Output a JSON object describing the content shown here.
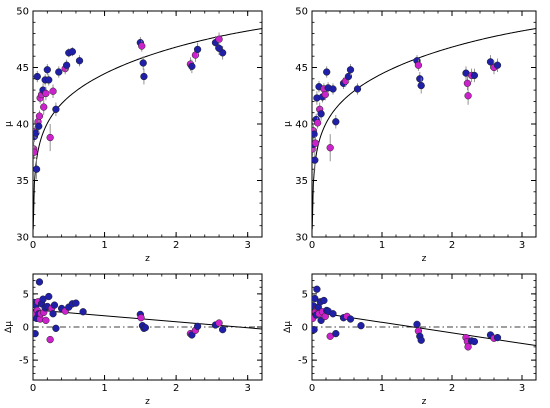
{
  "chart_data": [
    {
      "id": "top-left",
      "type": "scatter",
      "xlabel": "z",
      "ylabel": "μ",
      "xlim": [
        0,
        3.2
      ],
      "ylim": [
        30,
        50
      ],
      "xticks": [
        0,
        1,
        2,
        3
      ],
      "yticks": [
        30,
        35,
        40,
        45,
        50
      ],
      "xtick_labels": [
        "0",
        "1",
        "2",
        "3"
      ],
      "ytick_labels": [
        "30",
        "35",
        "40",
        "45",
        "50"
      ],
      "reference_line": "curve",
      "colors": {
        "blue": "#1f1fa8",
        "magenta": "#cc22cc",
        "line": "#000000",
        "errorbar": "#888888"
      },
      "points": [
        {
          "x": 0.01,
          "y": 37.8,
          "e": 0.6,
          "c": "magenta"
        },
        {
          "x": 0.015,
          "y": 37.5,
          "e": 0.6,
          "c": "magenta"
        },
        {
          "x": 0.02,
          "y": 38.9,
          "e": 0.5,
          "c": "blue"
        },
        {
          "x": 0.025,
          "y": 39.3,
          "e": 0.5,
          "c": "magenta"
        },
        {
          "x": 0.04,
          "y": 39.2,
          "e": 0.5,
          "c": "blue"
        },
        {
          "x": 0.05,
          "y": 36.0,
          "e": 0.9,
          "c": "blue"
        },
        {
          "x": 0.06,
          "y": 44.2,
          "e": 0.5,
          "c": "blue"
        },
        {
          "x": 0.07,
          "y": 40.2,
          "e": 0.6,
          "c": "magenta"
        },
        {
          "x": 0.08,
          "y": 39.8,
          "e": 0.6,
          "c": "blue"
        },
        {
          "x": 0.09,
          "y": 40.7,
          "e": 0.5,
          "c": "magenta"
        },
        {
          "x": 0.1,
          "y": 42.3,
          "e": 0.5,
          "c": "magenta"
        },
        {
          "x": 0.12,
          "y": 42.6,
          "e": 0.5,
          "c": "magenta"
        },
        {
          "x": 0.14,
          "y": 43.0,
          "e": 0.6,
          "c": "blue"
        },
        {
          "x": 0.15,
          "y": 41.5,
          "e": 0.7,
          "c": "magenta"
        },
        {
          "x": 0.17,
          "y": 43.9,
          "e": 0.5,
          "c": "blue"
        },
        {
          "x": 0.18,
          "y": 42.7,
          "e": 0.6,
          "c": "magenta"
        },
        {
          "x": 0.2,
          "y": 44.8,
          "e": 0.5,
          "c": "blue"
        },
        {
          "x": 0.22,
          "y": 43.9,
          "e": 0.5,
          "c": "blue"
        },
        {
          "x": 0.24,
          "y": 38.8,
          "e": 1.2,
          "c": "magenta"
        },
        {
          "x": 0.28,
          "y": 42.9,
          "e": 0.6,
          "c": "magenta"
        },
        {
          "x": 0.32,
          "y": 41.3,
          "e": 0.6,
          "c": "blue"
        },
        {
          "x": 0.36,
          "y": 44.6,
          "e": 0.5,
          "c": "blue"
        },
        {
          "x": 0.45,
          "y": 44.9,
          "e": 0.5,
          "c": "magenta"
        },
        {
          "x": 0.47,
          "y": 45.2,
          "e": 0.5,
          "c": "blue"
        },
        {
          "x": 0.5,
          "y": 46.3,
          "e": 0.4,
          "c": "blue"
        },
        {
          "x": 0.55,
          "y": 46.4,
          "e": 0.4,
          "c": "blue"
        },
        {
          "x": 0.65,
          "y": 45.6,
          "e": 0.5,
          "c": "blue"
        },
        {
          "x": 1.5,
          "y": 47.2,
          "e": 0.5,
          "c": "blue"
        },
        {
          "x": 1.52,
          "y": 46.9,
          "e": 0.5,
          "c": "magenta"
        },
        {
          "x": 1.54,
          "y": 45.4,
          "e": 0.6,
          "c": "blue"
        },
        {
          "x": 1.55,
          "y": 44.2,
          "e": 0.7,
          "c": "blue"
        },
        {
          "x": 2.2,
          "y": 45.3,
          "e": 0.6,
          "c": "magenta"
        },
        {
          "x": 2.22,
          "y": 45.1,
          "e": 0.6,
          "c": "blue"
        },
        {
          "x": 2.27,
          "y": 46.1,
          "e": 0.6,
          "c": "magenta"
        },
        {
          "x": 2.3,
          "y": 46.6,
          "e": 0.6,
          "c": "blue"
        },
        {
          "x": 2.55,
          "y": 47.2,
          "e": 0.6,
          "c": "blue"
        },
        {
          "x": 2.6,
          "y": 47.5,
          "e": 0.6,
          "c": "magenta"
        },
        {
          "x": 2.65,
          "y": 46.3,
          "e": 0.6,
          "c": "blue"
        },
        {
          "x": 2.6,
          "y": 46.7,
          "e": 0.6,
          "c": "blue"
        }
      ]
    },
    {
      "id": "top-right",
      "type": "scatter",
      "xlabel": "z",
      "ylabel": "μ",
      "xlim": [
        0,
        3.2
      ],
      "ylim": [
        30,
        50
      ],
      "xticks": [
        0,
        1,
        2,
        3
      ],
      "yticks": [
        30,
        35,
        40,
        45,
        50
      ],
      "xtick_labels": [
        "0",
        "1",
        "2",
        "3"
      ],
      "ytick_labels": [
        "30",
        "35",
        "40",
        "45",
        "50"
      ],
      "reference_line": "curve",
      "colors": {
        "blue": "#1f1fa8",
        "magenta": "#cc22cc",
        "line": "#000000",
        "errorbar": "#888888"
      },
      "points": [
        {
          "x": 0.01,
          "y": 37.8,
          "e": 0.6,
          "c": "magenta"
        },
        {
          "x": 0.015,
          "y": 38.2,
          "e": 0.6,
          "c": "blue"
        },
        {
          "x": 0.02,
          "y": 39.4,
          "e": 0.5,
          "c": "magenta"
        },
        {
          "x": 0.03,
          "y": 39.1,
          "e": 0.5,
          "c": "blue"
        },
        {
          "x": 0.04,
          "y": 36.8,
          "e": 0.9,
          "c": "blue"
        },
        {
          "x": 0.05,
          "y": 38.3,
          "e": 0.6,
          "c": "magenta"
        },
        {
          "x": 0.06,
          "y": 40.4,
          "e": 0.5,
          "c": "blue"
        },
        {
          "x": 0.07,
          "y": 42.3,
          "e": 0.6,
          "c": "blue"
        },
        {
          "x": 0.08,
          "y": 40.1,
          "e": 0.5,
          "c": "magenta"
        },
        {
          "x": 0.1,
          "y": 43.3,
          "e": 0.5,
          "c": "blue"
        },
        {
          "x": 0.11,
          "y": 41.3,
          "e": 0.6,
          "c": "magenta"
        },
        {
          "x": 0.13,
          "y": 40.9,
          "e": 0.6,
          "c": "blue"
        },
        {
          "x": 0.15,
          "y": 42.4,
          "e": 0.5,
          "c": "blue"
        },
        {
          "x": 0.17,
          "y": 43.1,
          "e": 0.5,
          "c": "magenta"
        },
        {
          "x": 0.19,
          "y": 42.6,
          "e": 0.5,
          "c": "magenta"
        },
        {
          "x": 0.21,
          "y": 44.6,
          "e": 0.5,
          "c": "blue"
        },
        {
          "x": 0.23,
          "y": 43.2,
          "e": 0.5,
          "c": "blue"
        },
        {
          "x": 0.26,
          "y": 37.9,
          "e": 1.2,
          "c": "magenta"
        },
        {
          "x": 0.3,
          "y": 43.1,
          "e": 0.5,
          "c": "blue"
        },
        {
          "x": 0.34,
          "y": 40.2,
          "e": 0.6,
          "c": "blue"
        },
        {
          "x": 0.45,
          "y": 43.6,
          "e": 0.5,
          "c": "blue"
        },
        {
          "x": 0.48,
          "y": 43.8,
          "e": 0.5,
          "c": "magenta"
        },
        {
          "x": 0.52,
          "y": 44.2,
          "e": 0.5,
          "c": "blue"
        },
        {
          "x": 0.55,
          "y": 44.8,
          "e": 0.5,
          "c": "blue"
        },
        {
          "x": 0.65,
          "y": 43.1,
          "e": 0.5,
          "c": "blue"
        },
        {
          "x": 1.5,
          "y": 45.6,
          "e": 0.5,
          "c": "blue"
        },
        {
          "x": 1.52,
          "y": 45.2,
          "e": 0.5,
          "c": "magenta"
        },
        {
          "x": 1.54,
          "y": 44.0,
          "e": 0.6,
          "c": "blue"
        },
        {
          "x": 1.56,
          "y": 43.4,
          "e": 0.7,
          "c": "blue"
        },
        {
          "x": 2.2,
          "y": 44.5,
          "e": 0.6,
          "c": "blue"
        },
        {
          "x": 2.22,
          "y": 43.6,
          "e": 0.6,
          "c": "magenta"
        },
        {
          "x": 2.23,
          "y": 42.5,
          "e": 0.8,
          "c": "magenta"
        },
        {
          "x": 2.28,
          "y": 44.3,
          "e": 0.6,
          "c": "magenta"
        },
        {
          "x": 2.32,
          "y": 44.3,
          "e": 0.6,
          "c": "blue"
        },
        {
          "x": 2.55,
          "y": 45.5,
          "e": 0.6,
          "c": "blue"
        },
        {
          "x": 2.6,
          "y": 45.0,
          "e": 0.6,
          "c": "magenta"
        },
        {
          "x": 2.65,
          "y": 45.2,
          "e": 0.6,
          "c": "blue"
        }
      ]
    },
    {
      "id": "bottom-left",
      "type": "scatter",
      "xlabel": "z",
      "ylabel": "Δμ",
      "xlim": [
        0,
        3.2
      ],
      "ylim": [
        -8,
        8
      ],
      "xticks": [
        0,
        1,
        2,
        3
      ],
      "yticks": [
        -5,
        0,
        5
      ],
      "xtick_labels": [
        "0",
        "1",
        "2",
        "3"
      ],
      "ytick_labels": [
        "-5",
        "0",
        "5"
      ],
      "reference_line": {
        "type": "linear",
        "x": [
          0,
          3.2
        ],
        "y": [
          2.6,
          -0.3
        ]
      },
      "colors": {
        "blue": "#1f1fa8",
        "magenta": "#cc22cc",
        "line": "#000000",
        "errorbar": "#888888"
      },
      "points": [
        {
          "x": 0.01,
          "y": 1.9,
          "c": "magenta"
        },
        {
          "x": 0.02,
          "y": 3.7,
          "c": "blue"
        },
        {
          "x": 0.03,
          "y": -1.0,
          "c": "blue"
        },
        {
          "x": 0.04,
          "y": 3.3,
          "c": "blue"
        },
        {
          "x": 0.05,
          "y": 1.3,
          "c": "blue"
        },
        {
          "x": 0.06,
          "y": 2.5,
          "c": "magenta"
        },
        {
          "x": 0.07,
          "y": 3.8,
          "c": "magenta"
        },
        {
          "x": 0.08,
          "y": 2.0,
          "c": "blue"
        },
        {
          "x": 0.09,
          "y": 6.8,
          "c": "blue"
        },
        {
          "x": 0.1,
          "y": 1.2,
          "c": "magenta"
        },
        {
          "x": 0.11,
          "y": 2.0,
          "c": "magenta"
        },
        {
          "x": 0.12,
          "y": 3.5,
          "c": "blue"
        },
        {
          "x": 0.14,
          "y": 4.2,
          "c": "blue"
        },
        {
          "x": 0.15,
          "y": 2.2,
          "c": "magenta"
        },
        {
          "x": 0.17,
          "y": 2.9,
          "c": "blue"
        },
        {
          "x": 0.18,
          "y": 1.0,
          "c": "magenta"
        },
        {
          "x": 0.2,
          "y": 3.1,
          "c": "blue"
        },
        {
          "x": 0.22,
          "y": 4.6,
          "c": "blue"
        },
        {
          "x": 0.24,
          "y": -1.9,
          "c": "magenta"
        },
        {
          "x": 0.26,
          "y": 2.8,
          "c": "magenta"
        },
        {
          "x": 0.28,
          "y": 2.0,
          "c": "blue"
        },
        {
          "x": 0.3,
          "y": 3.3,
          "c": "blue"
        },
        {
          "x": 0.32,
          "y": -0.2,
          "c": "blue"
        },
        {
          "x": 0.4,
          "y": 2.8,
          "c": "blue"
        },
        {
          "x": 0.45,
          "y": 2.4,
          "c": "magenta"
        },
        {
          "x": 0.5,
          "y": 3.0,
          "c": "blue"
        },
        {
          "x": 0.55,
          "y": 3.5,
          "c": "blue"
        },
        {
          "x": 0.6,
          "y": 3.6,
          "c": "blue"
        },
        {
          "x": 0.7,
          "y": 2.3,
          "c": "blue"
        },
        {
          "x": 1.5,
          "y": 1.9,
          "c": "blue"
        },
        {
          "x": 1.51,
          "y": 1.4,
          "c": "magenta"
        },
        {
          "x": 1.53,
          "y": 0.2,
          "c": "blue"
        },
        {
          "x": 1.55,
          "y": -0.2,
          "c": "blue"
        },
        {
          "x": 1.57,
          "y": -0.1,
          "c": "blue"
        },
        {
          "x": 2.2,
          "y": -1.0,
          "c": "magenta"
        },
        {
          "x": 2.22,
          "y": -1.2,
          "c": "blue"
        },
        {
          "x": 2.27,
          "y": -0.5,
          "c": "magenta"
        },
        {
          "x": 2.3,
          "y": 0.1,
          "c": "blue"
        },
        {
          "x": 2.55,
          "y": 0.3,
          "c": "blue"
        },
        {
          "x": 2.6,
          "y": 0.6,
          "c": "magenta"
        },
        {
          "x": 2.65,
          "y": -0.4,
          "c": "blue"
        }
      ]
    },
    {
      "id": "bottom-right",
      "type": "scatter",
      "xlabel": "z",
      "ylabel": "Δμ",
      "xlim": [
        0,
        3.2
      ],
      "ylim": [
        -8,
        8
      ],
      "xticks": [
        0,
        1,
        2,
        3
      ],
      "yticks": [
        -5,
        0,
        5
      ],
      "xtick_labels": [
        "0",
        "1",
        "2",
        "3"
      ],
      "ytick_labels": [
        "-5",
        "0",
        "5"
      ],
      "reference_line": {
        "type": "linear",
        "x": [
          0,
          3.2
        ],
        "y": [
          2.3,
          -2.8
        ]
      },
      "colors": {
        "blue": "#1f1fa8",
        "magenta": "#cc22cc",
        "line": "#000000",
        "errorbar": "#888888"
      },
      "points": [
        {
          "x": 0.01,
          "y": 1.3,
          "c": "magenta"
        },
        {
          "x": 0.02,
          "y": 3.2,
          "c": "blue"
        },
        {
          "x": 0.03,
          "y": -0.4,
          "c": "blue"
        },
        {
          "x": 0.04,
          "y": 4.3,
          "c": "blue"
        },
        {
          "x": 0.05,
          "y": 2.3,
          "c": "magenta"
        },
        {
          "x": 0.06,
          "y": 1.8,
          "c": "blue"
        },
        {
          "x": 0.07,
          "y": 5.7,
          "c": "blue"
        },
        {
          "x": 0.08,
          "y": 2.9,
          "c": "magenta"
        },
        {
          "x": 0.09,
          "y": 3.0,
          "c": "blue"
        },
        {
          "x": 0.1,
          "y": 2.0,
          "c": "magenta"
        },
        {
          "x": 0.12,
          "y": 3.8,
          "c": "blue"
        },
        {
          "x": 0.13,
          "y": 1.0,
          "c": "blue"
        },
        {
          "x": 0.15,
          "y": 2.3,
          "c": "magenta"
        },
        {
          "x": 0.17,
          "y": 4.0,
          "c": "blue"
        },
        {
          "x": 0.19,
          "y": 1.6,
          "c": "magenta"
        },
        {
          "x": 0.21,
          "y": 2.5,
          "c": "blue"
        },
        {
          "x": 0.23,
          "y": 2.4,
          "c": "blue"
        },
        {
          "x": 0.26,
          "y": -1.4,
          "c": "magenta"
        },
        {
          "x": 0.3,
          "y": 2.0,
          "c": "blue"
        },
        {
          "x": 0.34,
          "y": -1.0,
          "c": "blue"
        },
        {
          "x": 0.45,
          "y": 1.4,
          "c": "blue"
        },
        {
          "x": 0.5,
          "y": 1.6,
          "c": "magenta"
        },
        {
          "x": 0.55,
          "y": 1.2,
          "c": "blue"
        },
        {
          "x": 0.7,
          "y": 0.2,
          "c": "blue"
        },
        {
          "x": 1.5,
          "y": 0.4,
          "c": "blue"
        },
        {
          "x": 1.52,
          "y": -0.6,
          "c": "magenta"
        },
        {
          "x": 1.54,
          "y": -1.4,
          "c": "blue"
        },
        {
          "x": 1.56,
          "y": -2.0,
          "c": "blue"
        },
        {
          "x": 2.2,
          "y": -1.6,
          "c": "magenta"
        },
        {
          "x": 2.22,
          "y": -2.2,
          "c": "magenta"
        },
        {
          "x": 2.23,
          "y": -3.0,
          "c": "magenta"
        },
        {
          "x": 2.28,
          "y": -2.1,
          "c": "blue"
        },
        {
          "x": 2.32,
          "y": -2.2,
          "c": "blue"
        },
        {
          "x": 2.55,
          "y": -1.2,
          "c": "blue"
        },
        {
          "x": 2.6,
          "y": -1.7,
          "c": "magenta"
        },
        {
          "x": 2.65,
          "y": -1.6,
          "c": "blue"
        }
      ]
    }
  ]
}
